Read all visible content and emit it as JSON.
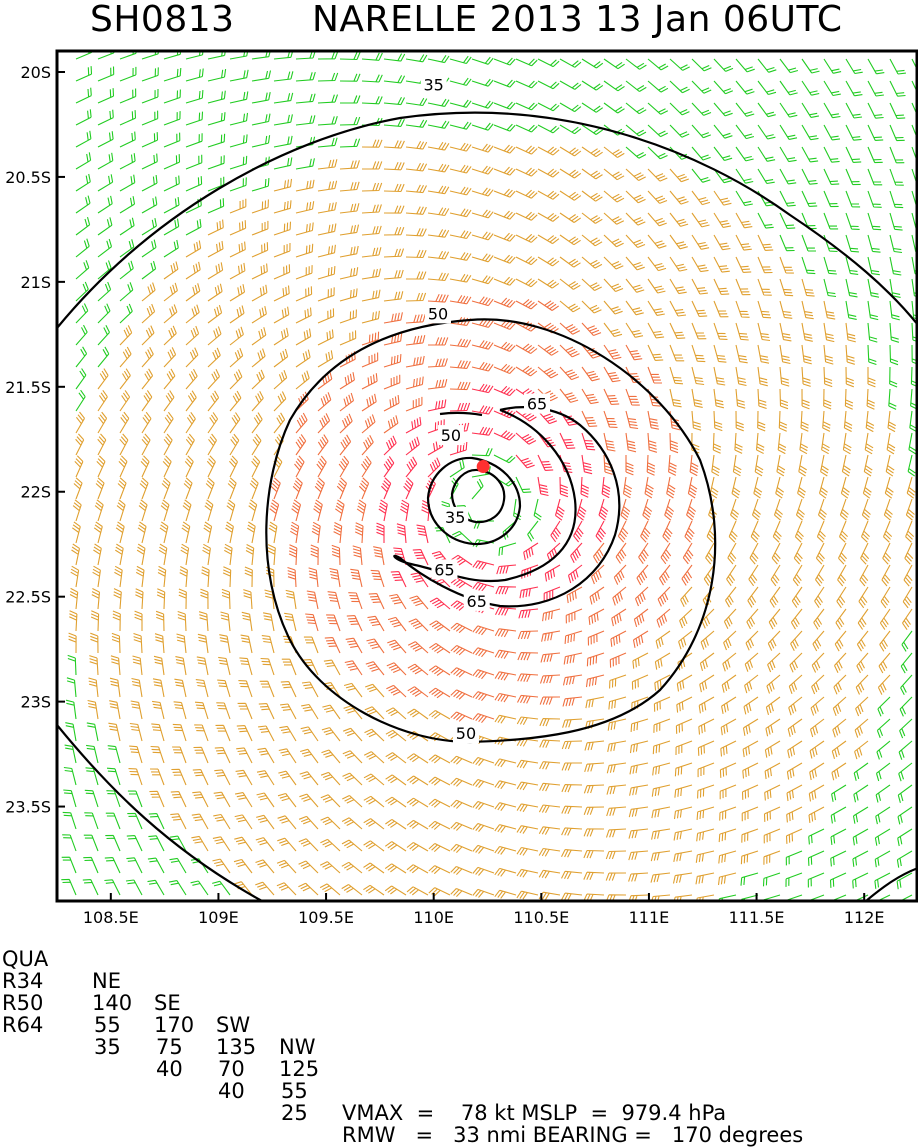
{
  "title": {
    "storm_id": "SH0813",
    "detail": "NARELLE 2013 13 Jan 06UTC"
  },
  "map": {
    "lat_ticks": [
      "20S",
      "20.5S",
      "21S",
      "21.5S",
      "22S",
      "22.5S",
      "23S",
      "23.5S"
    ],
    "lat_values": [
      -20,
      -20.5,
      -21,
      -21.5,
      -22,
      -22.5,
      -23,
      -23.5
    ],
    "lon_ticks": [
      "108.5E",
      "109E",
      "109.5E",
      "110E",
      "110.5E",
      "111E",
      "111.5E",
      "112E"
    ],
    "lon_values": [
      108.5,
      109,
      109.5,
      110,
      110.5,
      111,
      111.5,
      112
    ],
    "lon_range": [
      108.25,
      112.25
    ],
    "lat_range": [
      -19.9,
      -23.95
    ],
    "center": {
      "lon": 110.23,
      "lat": -21.88
    },
    "contour_labels": [
      {
        "text": "35",
        "lon": 110.0,
        "lat": -20.06
      },
      {
        "text": "50",
        "lon": 110.02,
        "lat": -21.15
      },
      {
        "text": "65",
        "lon": 110.48,
        "lat": -21.58
      },
      {
        "text": "50",
        "lon": 110.08,
        "lat": -21.73
      },
      {
        "text": "35",
        "lon": 110.1,
        "lat": -22.12
      },
      {
        "text": "65",
        "lon": 110.05,
        "lat": -22.37
      },
      {
        "text": "65",
        "lon": 110.2,
        "lat": -22.52
      },
      {
        "text": "50",
        "lon": 110.15,
        "lat": -23.15
      }
    ],
    "colors": {
      "below_34": "#22cc22",
      "r34_r50": "#e0a030",
      "r50_r64": "#f07040",
      "above_64": "#ff3050",
      "center": "#ff3030",
      "contour": "#000000"
    }
  },
  "stats": {
    "header": [
      "QUA",
      "NE",
      "SE",
      "SW",
      "NW"
    ],
    "rows": [
      {
        "label": "R34",
        "values": [
          "140",
          "170",
          "135",
          "125"
        ]
      },
      {
        "label": "R50",
        "values": [
          "55",
          "75",
          "70",
          "55"
        ]
      },
      {
        "label": "R64",
        "values": [
          "35",
          "40",
          "40",
          "25"
        ]
      }
    ],
    "vmax_line": "VMAX  =    78 kt MSLP  =  979.4 hPa",
    "rmw_line": "RMW   =   33 nmi BEARING =   170 degrees"
  }
}
